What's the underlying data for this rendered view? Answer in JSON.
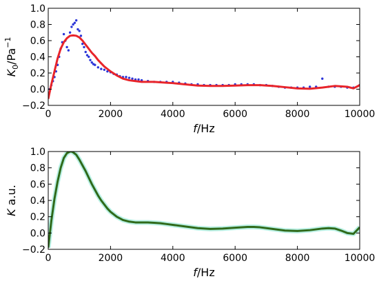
{
  "chart_data": [
    {
      "type": "scatter",
      "xlim": [
        0,
        10000
      ],
      "ylim": [
        -0.2,
        1.0
      ],
      "xticks": [
        0,
        2000,
        4000,
        6000,
        8000,
        10000
      ],
      "yticks": [
        -0.2,
        0.0,
        0.2,
        0.4,
        0.6,
        0.8,
        1.0
      ],
      "xlabel_main": "f",
      "xlabel_unit": "/Hz",
      "ylabel_main": "K",
      "ylabel_sub": "0",
      "ylabel_unit": "/Pa",
      "ylabel_sup": "−1",
      "grid": false,
      "colors": {
        "points": "#2b35d8",
        "fit": "#e8242a"
      },
      "series": [
        {
          "kind": "points",
          "x": [
            50,
            100,
            150,
            200,
            250,
            300,
            350,
            400,
            450,
            500,
            550,
            600,
            650,
            700,
            750,
            800,
            850,
            900,
            950,
            1000,
            1050,
            1100,
            1150,
            1200,
            1250,
            1300,
            1350,
            1400,
            1450,
            1500,
            1600,
            1700,
            1800,
            1900,
            2000,
            2100,
            2200,
            2300,
            2400,
            2500,
            2600,
            2700,
            2800,
            2900,
            3000,
            3200,
            3400,
            3600,
            3800,
            4000,
            4200,
            4400,
            4600,
            4800,
            5000,
            5200,
            5400,
            5600,
            5800,
            6000,
            6200,
            6400,
            6600,
            6800,
            7000,
            7200,
            7400,
            7600,
            7800,
            8000,
            8200,
            8400,
            8600,
            8800,
            9000,
            9200,
            9400,
            9600,
            9800,
            10000
          ],
          "y": [
            0.0,
            0.05,
            0.1,
            0.15,
            0.22,
            0.3,
            0.4,
            0.5,
            0.58,
            0.68,
            0.6,
            0.52,
            0.48,
            0.7,
            0.77,
            0.8,
            0.82,
            0.85,
            0.74,
            0.72,
            0.66,
            0.56,
            0.52,
            0.46,
            0.42,
            0.4,
            0.36,
            0.33,
            0.31,
            0.3,
            0.27,
            0.25,
            0.24,
            0.22,
            0.21,
            0.19,
            0.18,
            0.16,
            0.15,
            0.15,
            0.14,
            0.13,
            0.12,
            0.12,
            0.11,
            0.1,
            0.09,
            0.09,
            0.09,
            0.09,
            0.08,
            0.07,
            0.06,
            0.06,
            0.05,
            0.05,
            0.05,
            0.05,
            0.05,
            0.06,
            0.06,
            0.06,
            0.06,
            0.05,
            0.05,
            0.04,
            0.03,
            0.02,
            0.02,
            0.02,
            0.02,
            0.03,
            0.03,
            0.13,
            0.03,
            0.03,
            0.03,
            0.02,
            0.02,
            0.05
          ]
        },
        {
          "kind": "fit",
          "x": [
            0,
            100,
            200,
            300,
            400,
            500,
            600,
            700,
            800,
            900,
            1000,
            1100,
            1200,
            1300,
            1400,
            1500,
            1600,
            1700,
            1800,
            1900,
            2000,
            2200,
            2400,
            2600,
            2800,
            3000,
            3200,
            3400,
            3600,
            3800,
            4000,
            4400,
            4800,
            5200,
            5600,
            6000,
            6400,
            6800,
            7200,
            7600,
            8000,
            8400,
            8800,
            9200,
            9600,
            9800,
            10000
          ],
          "y": [
            -0.12,
            0.06,
            0.22,
            0.38,
            0.5,
            0.58,
            0.63,
            0.66,
            0.665,
            0.66,
            0.64,
            0.6,
            0.55,
            0.5,
            0.45,
            0.41,
            0.36,
            0.32,
            0.28,
            0.25,
            0.22,
            0.17,
            0.13,
            0.11,
            0.1,
            0.09,
            0.09,
            0.09,
            0.085,
            0.08,
            0.075,
            0.06,
            0.045,
            0.04,
            0.04,
            0.045,
            0.05,
            0.05,
            0.04,
            0.025,
            0.01,
            0.005,
            0.02,
            0.04,
            0.03,
            0.01,
            0.05
          ]
        }
      ]
    },
    {
      "type": "line",
      "xlim": [
        0,
        10000
      ],
      "ylim": [
        -0.2,
        1.0
      ],
      "xticks": [
        0,
        2000,
        4000,
        6000,
        8000,
        10000
      ],
      "yticks": [
        -0.2,
        0.0,
        0.2,
        0.4,
        0.6,
        0.8,
        1.0
      ],
      "xlabel_main": "f",
      "xlabel_unit": "/Hz",
      "ylabel_main": "K",
      "ylabel_unit": " a.u.",
      "grid": false,
      "colors": {
        "line": "#2f6a1a",
        "halo": "#b9f0e4"
      },
      "series": [
        {
          "kind": "line",
          "x": [
            0,
            100,
            200,
            300,
            400,
            500,
            600,
            700,
            750,
            800,
            900,
            1000,
            1100,
            1200,
            1300,
            1400,
            1500,
            1600,
            1700,
            1800,
            1900,
            2000,
            2200,
            2400,
            2600,
            2800,
            3000,
            3200,
            3400,
            3600,
            3800,
            4000,
            4400,
            4800,
            5200,
            5600,
            6000,
            6400,
            6600,
            6800,
            7200,
            7600,
            8000,
            8400,
            8800,
            9000,
            9200,
            9400,
            9600,
            9800,
            10000
          ],
          "y": [
            -0.18,
            0.15,
            0.42,
            0.63,
            0.8,
            0.92,
            0.98,
            1.0,
            1.0,
            0.99,
            0.96,
            0.9,
            0.83,
            0.76,
            0.68,
            0.6,
            0.53,
            0.46,
            0.4,
            0.35,
            0.3,
            0.26,
            0.2,
            0.16,
            0.14,
            0.13,
            0.13,
            0.13,
            0.125,
            0.12,
            0.11,
            0.1,
            0.08,
            0.06,
            0.05,
            0.055,
            0.065,
            0.075,
            0.075,
            0.07,
            0.05,
            0.03,
            0.025,
            0.035,
            0.055,
            0.06,
            0.055,
            0.03,
            0.0,
            -0.01,
            0.07
          ]
        }
      ]
    }
  ]
}
